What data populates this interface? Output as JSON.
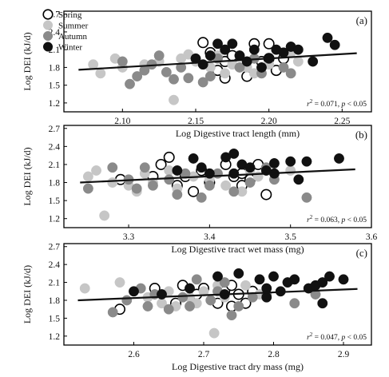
{
  "colors": {
    "spring_fill": "#ffffff",
    "summer_fill": "#c6c6c6",
    "autumn_fill": "#8a8a8a",
    "winter_fill": "#111111",
    "axis": "#000000"
  },
  "legend": {
    "items": [
      {
        "name": "Spring",
        "color": "#ffffff",
        "hollow": true
      },
      {
        "name": "Summer",
        "color": "#c6c6c6",
        "hollow": false
      },
      {
        "name": "Autumn",
        "color": "#8a8a8a",
        "hollow": false
      },
      {
        "name": "Winter",
        "color": "#111111",
        "hollow": false
      }
    ]
  },
  "chart_data": [
    {
      "type": "scatter",
      "panel_label": "(a)",
      "xlabel": "Log Digestive tract length (mm)",
      "ylabel": "Log DEI (kJ/d)",
      "xlim": [
        2.06,
        2.27
      ],
      "ylim": [
        1.05,
        2.75
      ],
      "xticks": [
        "2.10",
        "2.15",
        "2.20",
        "2.25"
      ],
      "yticks": [
        "1.2",
        "1.5",
        "1.8",
        "2.1",
        "2.4",
        "2.7"
      ],
      "stat_r2": "0.071",
      "stat_p": "< 0.05",
      "trend": {
        "x": [
          2.07,
          2.26
        ],
        "y": [
          1.76,
          2.04
        ]
      },
      "series": [
        {
          "name": "Spring",
          "points": [
            [
              2.155,
              2.22
            ],
            [
              2.16,
              2.05
            ],
            [
              2.17,
              1.9
            ],
            [
              2.165,
              1.75
            ],
            [
              2.175,
              2.0
            ],
            [
              2.18,
              1.85
            ],
            [
              2.19,
              2.2
            ],
            [
              2.195,
              1.9
            ],
            [
              2.2,
              2.2
            ],
            [
              2.205,
              1.75
            ],
            [
              2.21,
              1.95
            ],
            [
              2.185,
              1.65
            ],
            [
              2.17,
              1.62
            ],
            [
              2.2,
              1.95
            ]
          ]
        },
        {
          "name": "Summer",
          "points": [
            [
              2.08,
              1.85
            ],
            [
              2.085,
              1.7
            ],
            [
              2.095,
              1.95
            ],
            [
              2.1,
              1.8
            ],
            [
              2.115,
              1.85
            ],
            [
              2.125,
              1.9
            ],
            [
              2.135,
              1.25
            ],
            [
              2.14,
              1.95
            ],
            [
              2.145,
              2.02
            ],
            [
              2.15,
              1.9
            ],
            [
              2.16,
              1.8
            ],
            [
              2.165,
              2.0
            ],
            [
              2.17,
              1.7
            ],
            [
              2.175,
              1.85
            ],
            [
              2.185,
              1.8
            ],
            [
              2.19,
              1.7
            ],
            [
              2.2,
              1.85
            ],
            [
              2.215,
              2.05
            ],
            [
              2.22,
              1.9
            ]
          ]
        },
        {
          "name": "Autumn",
          "points": [
            [
              2.1,
              1.9
            ],
            [
              2.105,
              1.52
            ],
            [
              2.11,
              1.65
            ],
            [
              2.115,
              1.75
            ],
            [
              2.12,
              1.85
            ],
            [
              2.125,
              2.0
            ],
            [
              2.13,
              1.72
            ],
            [
              2.135,
              1.6
            ],
            [
              2.14,
              1.8
            ],
            [
              2.145,
              1.62
            ],
            [
              2.155,
              1.55
            ],
            [
              2.16,
              1.65
            ],
            [
              2.165,
              1.95
            ],
            [
              2.18,
              1.8
            ],
            [
              2.19,
              1.95
            ],
            [
              2.195,
              1.7
            ],
            [
              2.21,
              1.8
            ],
            [
              2.215,
              1.7
            ],
            [
              2.17,
              2.1
            ],
            [
              2.18,
              2.0
            ]
          ]
        },
        {
          "name": "Winter",
          "points": [
            [
              2.155,
              1.85
            ],
            [
              2.165,
              2.2
            ],
            [
              2.17,
              2.1
            ],
            [
              2.175,
              2.2
            ],
            [
              2.18,
              2.0
            ],
            [
              2.185,
              1.9
            ],
            [
              2.19,
              2.1
            ],
            [
              2.195,
              1.8
            ],
            [
              2.2,
              1.95
            ],
            [
              2.205,
              2.1
            ],
            [
              2.21,
              2.05
            ],
            [
              2.215,
              2.15
            ],
            [
              2.22,
              2.1
            ],
            [
              2.23,
              1.9
            ],
            [
              2.24,
              2.3
            ],
            [
              2.245,
              2.18
            ],
            [
              2.15,
              1.95
            ],
            [
              2.16,
              2.0
            ]
          ]
        }
      ]
    },
    {
      "type": "scatter",
      "panel_label": "(b)",
      "xlabel": "Log Digestive tract wet mass (mg)",
      "ylabel": "Log DEI (kJ/d)",
      "xlim": [
        3.22,
        3.6
      ],
      "ylim": [
        1.05,
        2.75
      ],
      "xticks": [
        "3.3",
        "3.4",
        "3.5",
        "3.6"
      ],
      "yticks": [
        "1.2",
        "1.5",
        "1.8",
        "2.1",
        "2.4",
        "2.7"
      ],
      "stat_r2": "0.063",
      "stat_p": "< 0.05",
      "trend": {
        "x": [
          3.24,
          3.58
        ],
        "y": [
          1.8,
          2.02
        ]
      },
      "series": [
        {
          "name": "Spring",
          "points": [
            [
              3.29,
              1.85
            ],
            [
              3.33,
              1.9
            ],
            [
              3.34,
              2.1
            ],
            [
              3.35,
              2.22
            ],
            [
              3.37,
              1.9
            ],
            [
              3.38,
              1.65
            ],
            [
              3.39,
              2.0
            ],
            [
              3.4,
              1.8
            ],
            [
              3.42,
              2.1
            ],
            [
              3.43,
              1.9
            ],
            [
              3.44,
              1.75
            ],
            [
              3.45,
              1.85
            ],
            [
              3.46,
              2.1
            ],
            [
              3.47,
              1.6
            ],
            [
              3.44,
              1.95
            ],
            [
              3.36,
              1.75
            ]
          ]
        },
        {
          "name": "Summer",
          "points": [
            [
              3.25,
              1.9
            ],
            [
              3.26,
              2.0
            ],
            [
              3.27,
              1.25
            ],
            [
              3.28,
              1.8
            ],
            [
              3.3,
              1.75
            ],
            [
              3.31,
              1.65
            ],
            [
              3.32,
              1.95
            ],
            [
              3.33,
              1.8
            ],
            [
              3.35,
              2.0
            ],
            [
              3.36,
              1.7
            ],
            [
              3.38,
              1.9
            ],
            [
              3.4,
              1.85
            ],
            [
              3.42,
              1.75
            ],
            [
              3.44,
              1.65
            ],
            [
              3.45,
              2.0
            ],
            [
              3.46,
              1.9
            ],
            [
              3.5,
              2.0
            ]
          ]
        },
        {
          "name": "Autumn",
          "points": [
            [
              3.25,
              1.7
            ],
            [
              3.28,
              2.05
            ],
            [
              3.3,
              1.85
            ],
            [
              3.31,
              1.7
            ],
            [
              3.32,
              2.05
            ],
            [
              3.33,
              1.75
            ],
            [
              3.35,
              1.85
            ],
            [
              3.36,
              1.6
            ],
            [
              3.37,
              1.95
            ],
            [
              3.39,
              1.55
            ],
            [
              3.4,
              1.75
            ],
            [
              3.41,
              1.95
            ],
            [
              3.43,
              1.65
            ],
            [
              3.45,
              1.8
            ],
            [
              3.48,
              1.85
            ],
            [
              3.52,
              1.55
            ],
            [
              3.47,
              2.05
            ]
          ]
        },
        {
          "name": "Winter",
          "points": [
            [
              3.36,
              2.0
            ],
            [
              3.38,
              2.2
            ],
            [
              3.39,
              2.05
            ],
            [
              3.4,
              1.95
            ],
            [
              3.42,
              2.22
            ],
            [
              3.43,
              2.28
            ],
            [
              3.44,
              2.1
            ],
            [
              3.45,
              2.05
            ],
            [
              3.47,
              2.0
            ],
            [
              3.48,
              1.95
            ],
            [
              3.5,
              2.15
            ],
            [
              3.51,
              1.85
            ],
            [
              3.52,
              2.15
            ],
            [
              3.56,
              2.2
            ],
            [
              3.43,
              1.95
            ],
            [
              3.48,
              2.12
            ]
          ]
        }
      ]
    },
    {
      "type": "scatter",
      "panel_label": "(c)",
      "xlabel": "Log Digestive tract dry mass (mg)",
      "ylabel": "Log DEI (kJ/d)",
      "xlim": [
        2.5,
        2.94
      ],
      "ylim": [
        1.05,
        2.75
      ],
      "xticks": [
        "2.6",
        "2.7",
        "2.8",
        "2.9"
      ],
      "yticks": [
        "1.2",
        "1.5",
        "1.8",
        "2.1",
        "2.4",
        "2.7"
      ],
      "stat_r2": "0.047",
      "stat_p": "< 0.05",
      "trend": {
        "x": [
          2.52,
          2.92
        ],
        "y": [
          1.8,
          1.99
        ]
      },
      "series": [
        {
          "name": "Spring",
          "points": [
            [
              2.58,
              1.65
            ],
            [
              2.63,
              2.0
            ],
            [
              2.66,
              1.75
            ],
            [
              2.67,
              2.05
            ],
            [
              2.69,
              1.9
            ],
            [
              2.7,
              2.0
            ],
            [
              2.72,
              1.75
            ],
            [
              2.73,
              1.95
            ],
            [
              2.74,
              1.7
            ],
            [
              2.75,
              1.9
            ],
            [
              2.76,
              1.75
            ],
            [
              2.77,
              1.95
            ],
            [
              2.74,
              2.05
            ]
          ]
        },
        {
          "name": "Summer",
          "points": [
            [
              2.53,
              2.0
            ],
            [
              2.58,
              2.1
            ],
            [
              2.6,
              1.95
            ],
            [
              2.62,
              1.85
            ],
            [
              2.64,
              1.75
            ],
            [
              2.65,
              1.95
            ],
            [
              2.66,
              1.7
            ],
            [
              2.68,
              1.85
            ],
            [
              2.69,
              1.75
            ],
            [
              2.7,
              1.95
            ],
            [
              2.71,
              1.8
            ],
            [
              2.715,
              1.25
            ],
            [
              2.72,
              2.05
            ],
            [
              2.73,
              1.85
            ],
            [
              2.76,
              2.05
            ],
            [
              2.78,
              1.9
            ]
          ]
        },
        {
          "name": "Autumn",
          "points": [
            [
              2.57,
              1.6
            ],
            [
              2.59,
              1.8
            ],
            [
              2.61,
              2.0
            ],
            [
              2.62,
              1.7
            ],
            [
              2.63,
              1.9
            ],
            [
              2.65,
              1.65
            ],
            [
              2.67,
              1.85
            ],
            [
              2.68,
              1.7
            ],
            [
              2.69,
              2.15
            ],
            [
              2.71,
              1.8
            ],
            [
              2.72,
              1.95
            ],
            [
              2.73,
              2.1
            ],
            [
              2.74,
              1.55
            ],
            [
              2.75,
              1.7
            ],
            [
              2.77,
              1.85
            ],
            [
              2.79,
              1.9
            ],
            [
              2.83,
              1.75
            ],
            [
              2.86,
              1.9
            ]
          ]
        },
        {
          "name": "Winter",
          "points": [
            [
              2.6,
              1.95
            ],
            [
              2.64,
              1.9
            ],
            [
              2.68,
              2.0
            ],
            [
              2.72,
              2.2
            ],
            [
              2.73,
              1.9
            ],
            [
              2.75,
              2.25
            ],
            [
              2.78,
              2.15
            ],
            [
              2.79,
              2.0
            ],
            [
              2.8,
              2.2
            ],
            [
              2.81,
              1.95
            ],
            [
              2.82,
              2.1
            ],
            [
              2.85,
              2.0
            ],
            [
              2.86,
              2.05
            ],
            [
              2.87,
              2.1
            ],
            [
              2.88,
              2.2
            ],
            [
              2.87,
              1.75
            ],
            [
              2.9,
              2.15
            ],
            [
              2.83,
              2.15
            ],
            [
              2.79,
              1.85
            ]
          ]
        }
      ]
    }
  ]
}
